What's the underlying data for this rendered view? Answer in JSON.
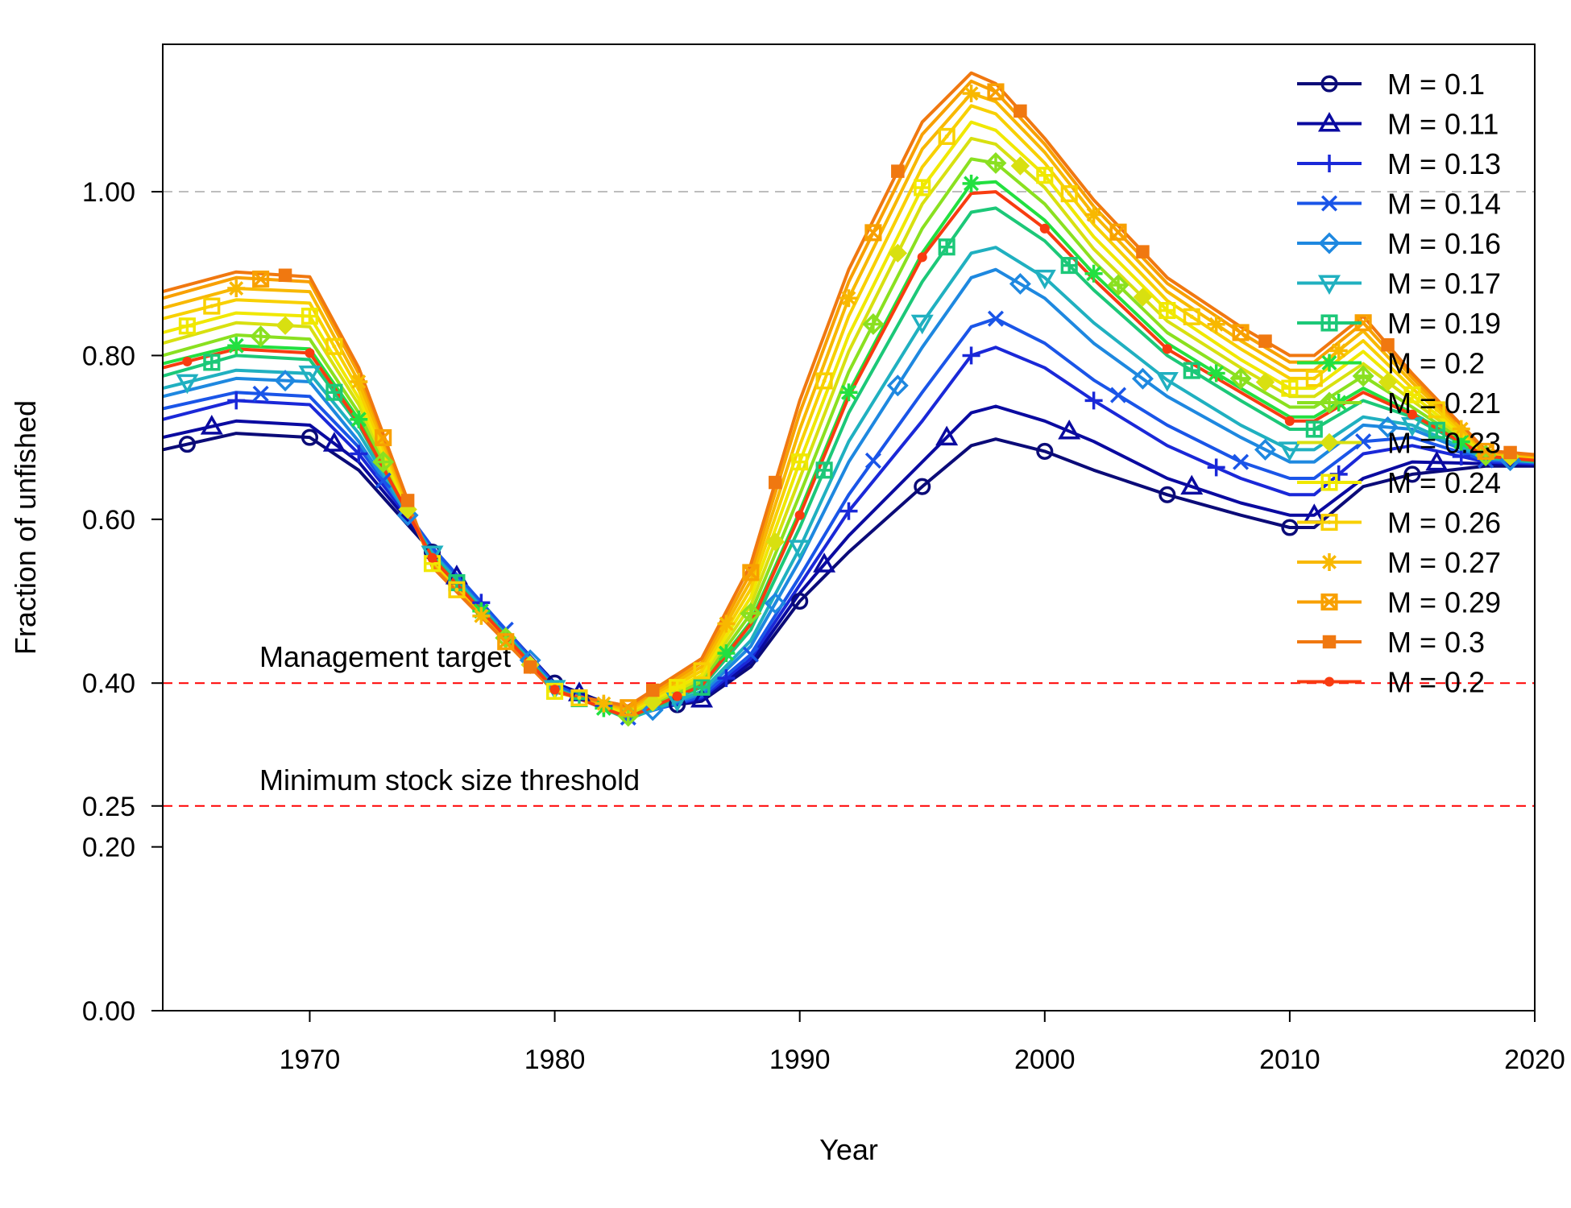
{
  "chart_data": {
    "type": "line",
    "xlabel": "Year",
    "ylabel": "Fraction of unfished",
    "xlim": [
      1964,
      2020
    ],
    "ylim": [
      0,
      1.18
    ],
    "x_ticks": [
      1970,
      1980,
      1990,
      2000,
      2010,
      2020
    ],
    "y_ticks": [
      0.0,
      0.2,
      0.25,
      0.4,
      0.6,
      0.8,
      1.0
    ],
    "y_tick_labels": [
      "0.00",
      "0.20",
      "0.25",
      "0.40",
      "0.60",
      "0.80",
      "1.00"
    ],
    "legend_position": "top-right",
    "reference_lines": [
      {
        "y": 1.0,
        "color": "#bdbdbd",
        "style": "dashed",
        "label": ""
      },
      {
        "y": 0.4,
        "color": "#ff0000",
        "style": "dashed",
        "label": "Management target"
      },
      {
        "y": 0.25,
        "color": "#ff0000",
        "style": "dashed",
        "label": "Minimum stock size threshold"
      }
    ],
    "key_years": [
      1964,
      1967,
      1970,
      1972,
      1975,
      1980,
      1983,
      1986,
      1988,
      1990,
      1992,
      1995,
      1997,
      1998,
      2000,
      2002,
      2005,
      2008,
      2010,
      2011,
      2013,
      2015,
      2018,
      2020
    ],
    "series": [
      {
        "name": "M = 0.1",
        "color": "#0b0b78",
        "marker": "circle",
        "marker_offset": 0,
        "values": [
          0.685,
          0.705,
          0.7,
          0.66,
          0.56,
          0.4,
          0.365,
          0.378,
          0.42,
          0.5,
          0.56,
          0.64,
          0.69,
          0.698,
          0.683,
          0.66,
          0.63,
          0.605,
          0.59,
          0.59,
          0.64,
          0.655,
          0.665,
          0.665
        ]
      },
      {
        "name": "M = 0.11",
        "color": "#0a0aa0",
        "marker": "triangle",
        "marker_offset": 1,
        "values": [
          0.7,
          0.72,
          0.715,
          0.67,
          0.563,
          0.4,
          0.363,
          0.38,
          0.425,
          0.51,
          0.58,
          0.67,
          0.73,
          0.738,
          0.72,
          0.695,
          0.65,
          0.62,
          0.605,
          0.605,
          0.65,
          0.67,
          0.668,
          0.667
        ]
      },
      {
        "name": "M = 0.13",
        "color": "#1a28d8",
        "marker": "plus",
        "marker_offset": 2,
        "values": [
          0.722,
          0.745,
          0.74,
          0.68,
          0.565,
          0.398,
          0.36,
          0.382,
          0.43,
          0.52,
          0.61,
          0.72,
          0.8,
          0.81,
          0.785,
          0.745,
          0.69,
          0.65,
          0.63,
          0.63,
          0.68,
          0.69,
          0.67,
          0.668
        ]
      },
      {
        "name": "M = 0.14",
        "color": "#1a55e8",
        "marker": "cross",
        "marker_offset": 3,
        "values": [
          0.735,
          0.755,
          0.75,
          0.688,
          0.566,
          0.398,
          0.358,
          0.384,
          0.435,
          0.53,
          0.63,
          0.755,
          0.835,
          0.845,
          0.815,
          0.77,
          0.715,
          0.67,
          0.65,
          0.65,
          0.695,
          0.7,
          0.672,
          0.669
        ]
      },
      {
        "name": "M = 0.16",
        "color": "#1e88e0",
        "marker": "diamond",
        "marker_offset": 4,
        "values": [
          0.75,
          0.772,
          0.768,
          0.695,
          0.56,
          0.395,
          0.357,
          0.387,
          0.445,
          0.55,
          0.67,
          0.81,
          0.895,
          0.905,
          0.87,
          0.815,
          0.75,
          0.7,
          0.67,
          0.67,
          0.715,
          0.71,
          0.674,
          0.67
        ]
      },
      {
        "name": "M = 0.17",
        "color": "#20b0c0",
        "marker": "triangle-down",
        "marker_offset": 0,
        "values": [
          0.76,
          0.782,
          0.778,
          0.705,
          0.558,
          0.394,
          0.356,
          0.39,
          0.452,
          0.565,
          0.695,
          0.84,
          0.925,
          0.932,
          0.895,
          0.84,
          0.77,
          0.715,
          0.685,
          0.685,
          0.725,
          0.715,
          0.675,
          0.67
        ]
      },
      {
        "name": "M = 0.19",
        "color": "#1cc878",
        "marker": "square-plus",
        "marker_offset": 1,
        "values": [
          0.775,
          0.8,
          0.795,
          0.715,
          0.555,
          0.393,
          0.357,
          0.395,
          0.465,
          0.59,
          0.73,
          0.89,
          0.975,
          0.98,
          0.94,
          0.88,
          0.8,
          0.745,
          0.71,
          0.71,
          0.745,
          0.725,
          0.676,
          0.671
        ]
      },
      {
        "name": "M = 0.2",
        "color": "#22e040",
        "marker": "asterisk",
        "marker_offset": 2,
        "values": [
          0.79,
          0.812,
          0.808,
          0.722,
          0.552,
          0.392,
          0.358,
          0.398,
          0.475,
          0.61,
          0.755,
          0.925,
          1.01,
          1.012,
          0.965,
          0.9,
          0.815,
          0.76,
          0.725,
          0.725,
          0.76,
          0.73,
          0.677,
          0.672
        ]
      },
      {
        "name": "M = 0.21",
        "color": "#8ae020",
        "marker": "diamond-plus",
        "marker_offset": 3,
        "values": [
          0.8,
          0.825,
          0.82,
          0.73,
          0.55,
          0.392,
          0.36,
          0.402,
          0.485,
          0.63,
          0.78,
          0.955,
          1.04,
          1.035,
          0.985,
          0.915,
          0.828,
          0.772,
          0.737,
          0.737,
          0.775,
          0.737,
          0.678,
          0.673
        ]
      },
      {
        "name": "M = 0.23",
        "color": "#d8e010",
        "marker": "diamond-filled",
        "marker_offset": 4,
        "values": [
          0.815,
          0.84,
          0.835,
          0.74,
          0.548,
          0.391,
          0.362,
          0.406,
          0.495,
          0.65,
          0.805,
          0.985,
          1.065,
          1.058,
          1.005,
          0.93,
          0.842,
          0.785,
          0.75,
          0.75,
          0.79,
          0.745,
          0.679,
          0.674
        ]
      },
      {
        "name": "M = 0.24",
        "color": "#f0e800",
        "marker": "square-cross",
        "marker_offset": 0,
        "values": [
          0.828,
          0.852,
          0.848,
          0.748,
          0.546,
          0.39,
          0.364,
          0.41,
          0.505,
          0.67,
          0.825,
          1.005,
          1.085,
          1.075,
          1.02,
          0.945,
          0.855,
          0.795,
          0.76,
          0.76,
          0.805,
          0.752,
          0.68,
          0.675
        ]
      },
      {
        "name": "M = 0.26",
        "color": "#f8d000",
        "marker": "square-dot",
        "marker_offset": 1,
        "values": [
          0.845,
          0.868,
          0.864,
          0.758,
          0.545,
          0.39,
          0.366,
          0.415,
          0.515,
          0.69,
          0.848,
          1.03,
          1.105,
          1.095,
          1.035,
          0.96,
          0.867,
          0.808,
          0.772,
          0.772,
          0.818,
          0.76,
          0.681,
          0.676
        ]
      },
      {
        "name": "M = 0.27",
        "color": "#f8b800",
        "marker": "cross-filled",
        "marker_offset": 2,
        "values": [
          0.858,
          0.882,
          0.878,
          0.768,
          0.544,
          0.389,
          0.368,
          0.42,
          0.525,
          0.71,
          0.87,
          1.052,
          1.12,
          1.11,
          1.048,
          0.972,
          0.878,
          0.818,
          0.782,
          0.782,
          0.83,
          0.767,
          0.682,
          0.677
        ]
      },
      {
        "name": "M = 0.29",
        "color": "#f8a000",
        "marker": "square-x",
        "marker_offset": 3,
        "values": [
          0.87,
          0.895,
          0.89,
          0.778,
          0.543,
          0.389,
          0.37,
          0.425,
          0.535,
          0.73,
          0.89,
          1.07,
          1.135,
          1.122,
          1.058,
          0.982,
          0.888,
          0.828,
          0.792,
          0.792,
          0.84,
          0.773,
          0.683,
          0.678
        ]
      },
      {
        "name": "M = 0.3",
        "color": "#f07810",
        "marker": "square-filled",
        "marker_offset": 4,
        "values": [
          0.878,
          0.902,
          0.896,
          0.785,
          0.542,
          0.389,
          0.372,
          0.43,
          0.545,
          0.745,
          0.905,
          1.085,
          1.145,
          1.132,
          1.065,
          0.99,
          0.895,
          0.835,
          0.8,
          0.8,
          0.848,
          0.778,
          0.684,
          0.679
        ]
      },
      {
        "name": "M = 0.2",
        "color": "#f83c10",
        "marker": "dot",
        "marker_offset": 0,
        "values": [
          0.785,
          0.808,
          0.803,
          0.718,
          0.553,
          0.392,
          0.358,
          0.397,
          0.472,
          0.605,
          0.75,
          0.92,
          0.998,
          1.0,
          0.955,
          0.893,
          0.808,
          0.755,
          0.72,
          0.72,
          0.755,
          0.728,
          0.677,
          0.672
        ]
      }
    ]
  }
}
